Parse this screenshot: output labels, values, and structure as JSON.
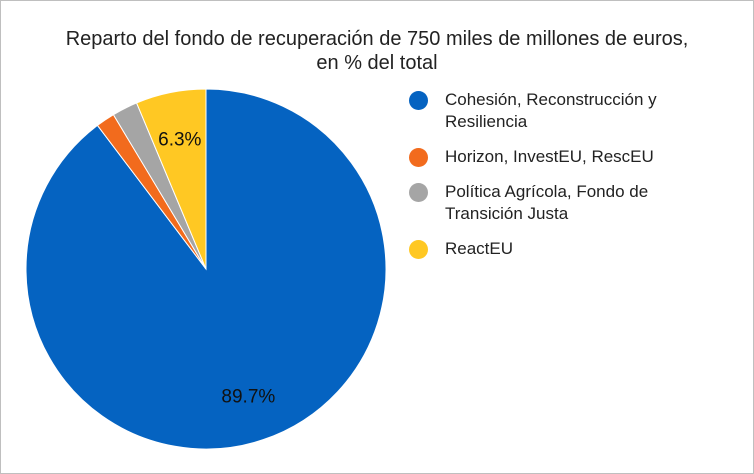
{
  "chart_data": {
    "type": "pie",
    "title": "Reparto del fondo de recuperación de 750 miles de millones de euros,",
    "subtitle": "en % del total",
    "legend_position": "right",
    "slices": [
      {
        "label": "Cohesión, Reconstrucción y Resiliencia",
        "label_lines": [
          "Cohesión, Reconstrucción y",
          "Resiliencia"
        ],
        "value": 89.7,
        "color": "#0563c1",
        "data_label": "89.7%"
      },
      {
        "label": "Horizon, InvestEU, RescEU",
        "label_lines": [
          "Horizon, InvestEU, RescEU"
        ],
        "value": 1.7,
        "color": "#f26b1d",
        "data_label": ""
      },
      {
        "label": "Política Agrícola, Fondo de Transición Justa",
        "label_lines": [
          "Política Agrícola, Fondo de",
          "Transición Justa"
        ],
        "value": 2.3,
        "color": "#a5a5a5",
        "data_label": ""
      },
      {
        "label": "ReactEU",
        "label_lines": [
          "ReactEU"
        ],
        "value": 6.3,
        "color": "#ffc823",
        "data_label": "6.3%"
      }
    ]
  }
}
